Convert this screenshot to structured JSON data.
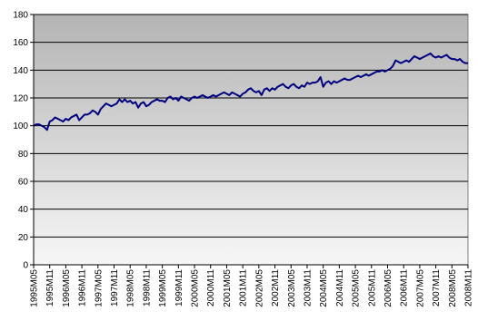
{
  "chart_data": {
    "type": "line",
    "categories": [
      "1995M05",
      null,
      null,
      null,
      null,
      null,
      "1995M11",
      null,
      null,
      null,
      null,
      null,
      "1996M05",
      null,
      null,
      null,
      null,
      null,
      "1996M11",
      null,
      null,
      null,
      null,
      null,
      "1997M05",
      null,
      null,
      null,
      null,
      null,
      "1997M11",
      null,
      null,
      null,
      null,
      null,
      "1998M05",
      null,
      null,
      null,
      null,
      null,
      "1998M11",
      null,
      null,
      null,
      null,
      null,
      "1999M05",
      null,
      null,
      null,
      null,
      null,
      "1999M11",
      null,
      null,
      null,
      null,
      null,
      "2000M05",
      null,
      null,
      null,
      null,
      null,
      "2000M11",
      null,
      null,
      null,
      null,
      null,
      "2001M05",
      null,
      null,
      null,
      null,
      null,
      "2001M11",
      null,
      null,
      null,
      null,
      null,
      "2002M05",
      null,
      null,
      null,
      null,
      null,
      "2002M11",
      null,
      null,
      null,
      null,
      null,
      "2003M05",
      null,
      null,
      null,
      null,
      null,
      "2003M11",
      null,
      null,
      null,
      null,
      null,
      "2004M05",
      null,
      null,
      null,
      null,
      null,
      "2004M11",
      null,
      null,
      null,
      null,
      null,
      "2005M05",
      null,
      null,
      null,
      null,
      null,
      "2005M11",
      null,
      null,
      null,
      null,
      null,
      "2006M05",
      null,
      null,
      null,
      null,
      null,
      "2006M11",
      null,
      null,
      null,
      null,
      null,
      "2007M05",
      null,
      null,
      null,
      null,
      null,
      "2007M11",
      null,
      null,
      null,
      null,
      null,
      "2008M05",
      null,
      null,
      null,
      null,
      null,
      "2008M11"
    ],
    "values": [
      100,
      101,
      101,
      100,
      99,
      97,
      103,
      104,
      106,
      105,
      104,
      103,
      105,
      104,
      106,
      107,
      108,
      104,
      106,
      108,
      108,
      109,
      111,
      110,
      108,
      112,
      114,
      116,
      115,
      114,
      115,
      116,
      119,
      117,
      119,
      117,
      118,
      116,
      117,
      113,
      116,
      117,
      114,
      115,
      117,
      118,
      119,
      118,
      118,
      117,
      120,
      121,
      119,
      120,
      118,
      121,
      120,
      119,
      118,
      120,
      121,
      120,
      121,
      122,
      121,
      120,
      121,
      122,
      121,
      122,
      123,
      124,
      123,
      122,
      124,
      123,
      122,
      121,
      123,
      124,
      126,
      127,
      125,
      124,
      125,
      122,
      126,
      127,
      125,
      127,
      126,
      128,
      129,
      130,
      128,
      127,
      129,
      130,
      128,
      127,
      129,
      128,
      131,
      130,
      131,
      131,
      132,
      135,
      128,
      131,
      132,
      130,
      132,
      131,
      132,
      133,
      134,
      133,
      133,
      134,
      135,
      136,
      135,
      136,
      137,
      136,
      137,
      138,
      139,
      139,
      140,
      139,
      140,
      141,
      143,
      147,
      146,
      145,
      146,
      147,
      146,
      148,
      150,
      149,
      148,
      149,
      150,
      151,
      152,
      150,
      149,
      150,
      149,
      150,
      151,
      149,
      148,
      148,
      147,
      148,
      146,
      145,
      145
    ],
    "color": "#000080",
    "ylim": [
      0,
      180
    ],
    "yticks": [
      0,
      20,
      40,
      60,
      80,
      100,
      120,
      140,
      160,
      180
    ],
    "grid": true
  }
}
